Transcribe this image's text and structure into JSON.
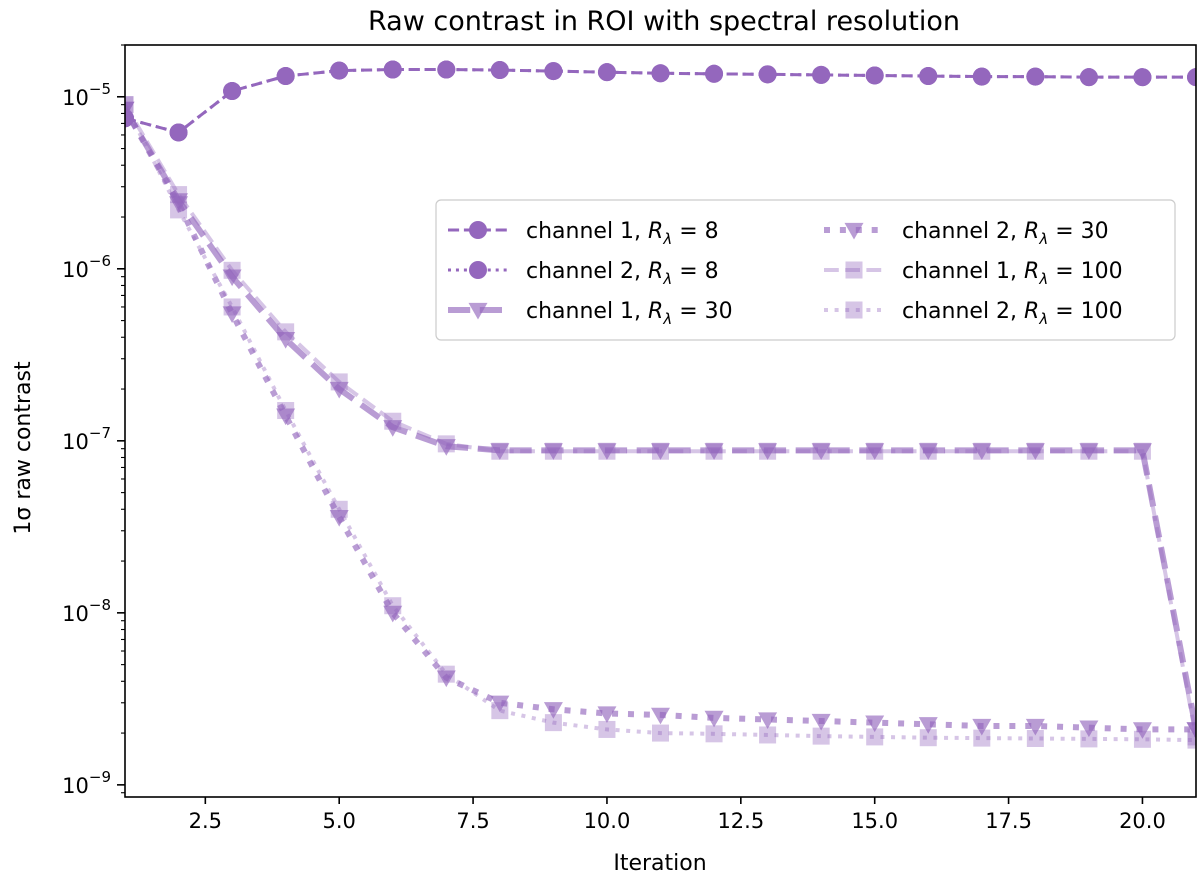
{
  "chart_data": {
    "type": "line",
    "title": "Raw contrast in ROI with spectral resolution",
    "xlabel": "Iteration",
    "ylabel": "1σ raw contrast",
    "xlim": [
      1,
      21
    ],
    "ylim": [
      8.5e-10,
      2e-05
    ],
    "yscale": "log",
    "xticks": [
      2.5,
      5.0,
      7.5,
      10.0,
      12.5,
      15.0,
      17.5,
      20.0
    ],
    "xtick_labels": [
      "2.5",
      "5.0",
      "7.5",
      "10.0",
      "12.5",
      "15.0",
      "17.5",
      "20.0"
    ],
    "yticks": [
      {
        "value": 1e-05,
        "base": "10",
        "exp": "−5"
      },
      {
        "value": 1e-06,
        "base": "10",
        "exp": "−6"
      },
      {
        "value": 1e-07,
        "base": "10",
        "exp": "−7"
      },
      {
        "value": 1e-08,
        "base": "10",
        "exp": "−8"
      },
      {
        "value": 1e-09,
        "base": "10",
        "exp": "−9"
      }
    ],
    "grid": false,
    "legend_position": "center-right",
    "color": "#9467bd",
    "x": [
      1,
      2,
      3,
      4,
      5,
      6,
      7,
      8,
      9,
      10,
      11,
      12,
      13,
      14,
      15,
      16,
      17,
      18,
      19,
      20,
      21
    ],
    "series": [
      {
        "name": "channel 1, R_λ = 8",
        "legend": {
          "prefix": "channel 1, ",
          "sym": "R",
          "sub": "λ",
          "suffix": " = 8"
        },
        "marker": "circle",
        "linestyle": "dashed",
        "opacity": 1.0,
        "linewidth": 3.0,
        "values": [
          7.5e-06,
          6.2e-06,
          1.08e-05,
          1.32e-05,
          1.42e-05,
          1.44e-05,
          1.44e-05,
          1.43e-05,
          1.41e-05,
          1.39e-05,
          1.37e-05,
          1.36e-05,
          1.35e-05,
          1.34e-05,
          1.33e-05,
          1.32e-05,
          1.31e-05,
          1.31e-05,
          1.3e-05,
          1.3e-05,
          1.3e-05
        ]
      },
      {
        "name": "channel 2, R_λ = 8",
        "legend": {
          "prefix": "channel 2, ",
          "sym": "R",
          "sub": "λ",
          "suffix": " = 8"
        },
        "marker": "circle",
        "linestyle": "dotted",
        "opacity": 1.0,
        "linewidth": 3.0,
        "values": [
          7.5e-06,
          6.2e-06,
          1.08e-05,
          1.32e-05,
          1.42e-05,
          1.44e-05,
          1.44e-05,
          1.43e-05,
          1.41e-05,
          1.39e-05,
          1.37e-05,
          1.36e-05,
          1.35e-05,
          1.34e-05,
          1.33e-05,
          1.32e-05,
          1.31e-05,
          1.31e-05,
          1.3e-05,
          1.3e-05,
          1.3e-05
        ]
      },
      {
        "name": "channel 1, R_λ = 30",
        "legend": {
          "prefix": "channel 1, ",
          "sym": "R",
          "sub": "λ",
          "suffix": " = 30"
        },
        "marker": "triangle",
        "linestyle": "dashed",
        "opacity": 0.65,
        "linewidth": 6.0,
        "values": [
          8.5e-06,
          2.5e-06,
          9e-07,
          3.9e-07,
          2e-07,
          1.2e-07,
          9.3e-08,
          8.8e-08,
          8.8e-08,
          8.8e-08,
          8.8e-08,
          8.8e-08,
          8.8e-08,
          8.8e-08,
          8.8e-08,
          8.8e-08,
          8.8e-08,
          8.8e-08,
          8.8e-08,
          8.8e-08,
          2.1e-09
        ]
      },
      {
        "name": "channel 2, R_λ = 30",
        "legend": {
          "prefix": "channel 2, ",
          "sym": "R",
          "sub": "λ",
          "suffix": " = 30"
        },
        "marker": "triangle",
        "linestyle": "dotted",
        "opacity": 0.65,
        "linewidth": 6.0,
        "values": [
          8.5e-06,
          2.4e-06,
          5.5e-07,
          1.4e-07,
          3.6e-08,
          1e-08,
          4.2e-09,
          3e-09,
          2.75e-09,
          2.6e-09,
          2.55e-09,
          2.45e-09,
          2.4e-09,
          2.35e-09,
          2.3e-09,
          2.25e-09,
          2.2e-09,
          2.2e-09,
          2.15e-09,
          2.1e-09,
          2.1e-09
        ]
      },
      {
        "name": "channel 1, R_λ = 100",
        "legend": {
          "prefix": "channel 1, ",
          "sym": "R",
          "sub": "λ",
          "suffix": " = 100"
        },
        "marker": "square",
        "linestyle": "dashed",
        "opacity": 0.38,
        "linewidth": 4.0,
        "values": [
          9e-06,
          2.7e-06,
          9.8e-07,
          4.3e-07,
          2.2e-07,
          1.3e-07,
          9.6e-08,
          8.7e-08,
          8.7e-08,
          8.7e-08,
          8.7e-08,
          8.7e-08,
          8.7e-08,
          8.7e-08,
          8.7e-08,
          8.7e-08,
          8.7e-08,
          8.7e-08,
          8.7e-08,
          8.7e-08,
          1.9e-09
        ]
      },
      {
        "name": "channel 2, R_λ = 100",
        "legend": {
          "prefix": "channel 2, ",
          "sym": "R",
          "sub": "λ",
          "suffix": " = 100"
        },
        "marker": "square",
        "linestyle": "dotted",
        "opacity": 0.38,
        "linewidth": 4.0,
        "values": [
          9e-06,
          2.2e-06,
          6e-07,
          1.5e-07,
          4e-08,
          1.1e-08,
          4.4e-09,
          2.7e-09,
          2.3e-09,
          2.1e-09,
          2e-09,
          1.98e-09,
          1.95e-09,
          1.92e-09,
          1.9e-09,
          1.88e-09,
          1.87e-09,
          1.86e-09,
          1.85e-09,
          1.84e-09,
          1.82e-09
        ]
      }
    ]
  }
}
